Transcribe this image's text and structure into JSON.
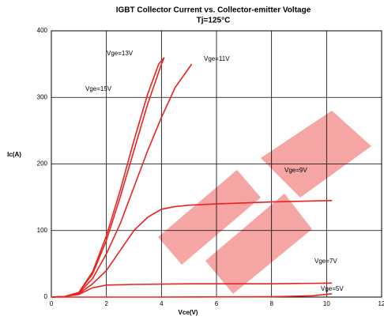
{
  "chart_data": {
    "type": "line",
    "title": "IGBT Collector Current vs. Collector-emitter Voltage",
    "subtitle": "Tj=125°C",
    "x_label": "Vce(V)",
    "y_label": "Ic(A)",
    "xlim": [
      0,
      12
    ],
    "xticks": [
      0,
      2,
      4,
      6,
      8,
      10,
      12
    ],
    "ylim": [
      0,
      400
    ],
    "yticks": [
      0,
      100,
      200,
      300,
      400
    ],
    "grid": true,
    "series": [
      {
        "name": "Vge=13V",
        "color": "#e8231f",
        "x": [
          0,
          0.5,
          1,
          1.5,
          2,
          2.5,
          3,
          3.5,
          4,
          4.1
        ],
        "values": [
          0,
          1,
          7,
          35,
          85,
          150,
          220,
          290,
          350,
          360
        ]
      },
      {
        "name": "Vge=11V",
        "color": "#e8231f",
        "x": [
          0,
          0.5,
          1,
          1.5,
          2,
          2.5,
          3,
          3.5,
          4,
          4.5,
          5.1
        ],
        "values": [
          0,
          1,
          6,
          28,
          65,
          110,
          165,
          220,
          270,
          315,
          350
        ]
      },
      {
        "name": "Vge=15V",
        "color": "#e8231f",
        "x": [
          0,
          0.5,
          1,
          1.5,
          2,
          2.5,
          3,
          3.5,
          3.9,
          4.1
        ],
        "values": [
          0,
          1,
          7,
          38,
          92,
          160,
          235,
          305,
          350,
          360
        ]
      },
      {
        "name": "Vge=9V",
        "color": "#e8231f",
        "x": [
          0,
          0.5,
          1,
          1.5,
          2,
          2.5,
          3,
          3.5,
          4,
          4.5,
          5,
          6,
          8,
          10.2
        ],
        "values": [
          0,
          1,
          5,
          20,
          40,
          70,
          100,
          120,
          132,
          136,
          138,
          140,
          143,
          145
        ]
      },
      {
        "name": "Vge=7V",
        "color": "#e8231f",
        "x": [
          0,
          0.5,
          1,
          1.5,
          2,
          3,
          5,
          8,
          10.2
        ],
        "values": [
          0,
          1,
          4,
          14,
          18,
          19,
          20,
          20,
          21
        ]
      },
      {
        "name": "Vge=5V",
        "color": "#e8231f",
        "x": [
          0,
          1,
          4,
          8,
          9.5,
          10.2
        ],
        "values": [
          0,
          0,
          0,
          0.5,
          2,
          5
        ]
      }
    ]
  }
}
